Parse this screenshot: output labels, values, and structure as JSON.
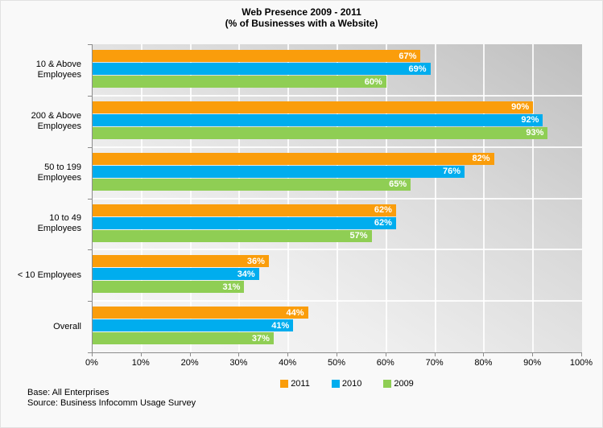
{
  "chart_data": {
    "type": "bar",
    "orientation": "horizontal",
    "title": "Web Presence 2009 - 2011",
    "subtitle": "(% of Businesses with a Website)",
    "categories": [
      "10 & Above\nEmployees",
      "200 & Above\nEmployees",
      "50 to 199\nEmployees",
      "10 to 49\nEmployees",
      "< 10 Employees",
      "Overall"
    ],
    "series": [
      {
        "name": "2011",
        "color": "#FA9D0B",
        "values": [
          67,
          90,
          82,
          62,
          36,
          44
        ]
      },
      {
        "name": "2010",
        "color": "#00ADEE",
        "values": [
          69,
          92,
          76,
          62,
          34,
          41
        ]
      },
      {
        "name": "2009",
        "color": "#8FCE54",
        "values": [
          60,
          93,
          65,
          57,
          31,
          37
        ]
      }
    ],
    "value_suffix": "%",
    "xlim": [
      0,
      100
    ],
    "x_ticks": [
      "0%",
      "10%",
      "20%",
      "30%",
      "40%",
      "50%",
      "60%",
      "70%",
      "80%",
      "90%",
      "100%"
    ],
    "legend_position": "bottom",
    "grid": true
  },
  "footer": {
    "base": "Base: All Enterprises",
    "source": "Source: Business Infocomm Usage Survey"
  }
}
